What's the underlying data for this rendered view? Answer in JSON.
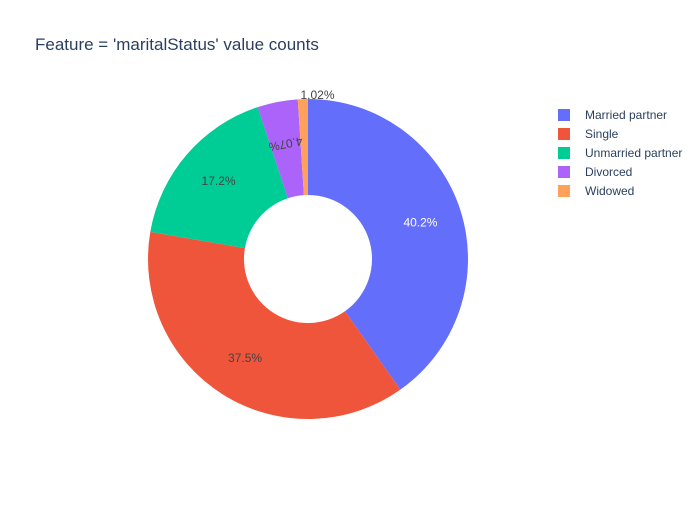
{
  "chart_data": {
    "type": "pie",
    "title": "Feature = 'maritalStatus' value counts",
    "hole": true,
    "legend_position": "top-right",
    "slices": [
      {
        "label": "Married partner",
        "percent": 40.2,
        "color": "#636efa",
        "text_color": "#ffffff",
        "text_position": "inside",
        "text": "40.2%"
      },
      {
        "label": "Single",
        "percent": 37.5,
        "color": "#ef553b",
        "text_color": "#444444",
        "text_position": "inside",
        "text": "37.5%"
      },
      {
        "label": "Unmarried partner",
        "percent": 17.2,
        "color": "#00cc96",
        "text_color": "#444444",
        "text_position": "inside",
        "text": "17.2%"
      },
      {
        "label": "Divorced",
        "percent": 4.07,
        "color": "#ab63fa",
        "text_color": "#444444",
        "text_position": "inside-rotated",
        "text": "4.07%"
      },
      {
        "label": "Widowed",
        "percent": 1.02,
        "color": "#ffa15a",
        "text_color": "#444444",
        "text_position": "outside",
        "text": "1.02%"
      }
    ]
  }
}
